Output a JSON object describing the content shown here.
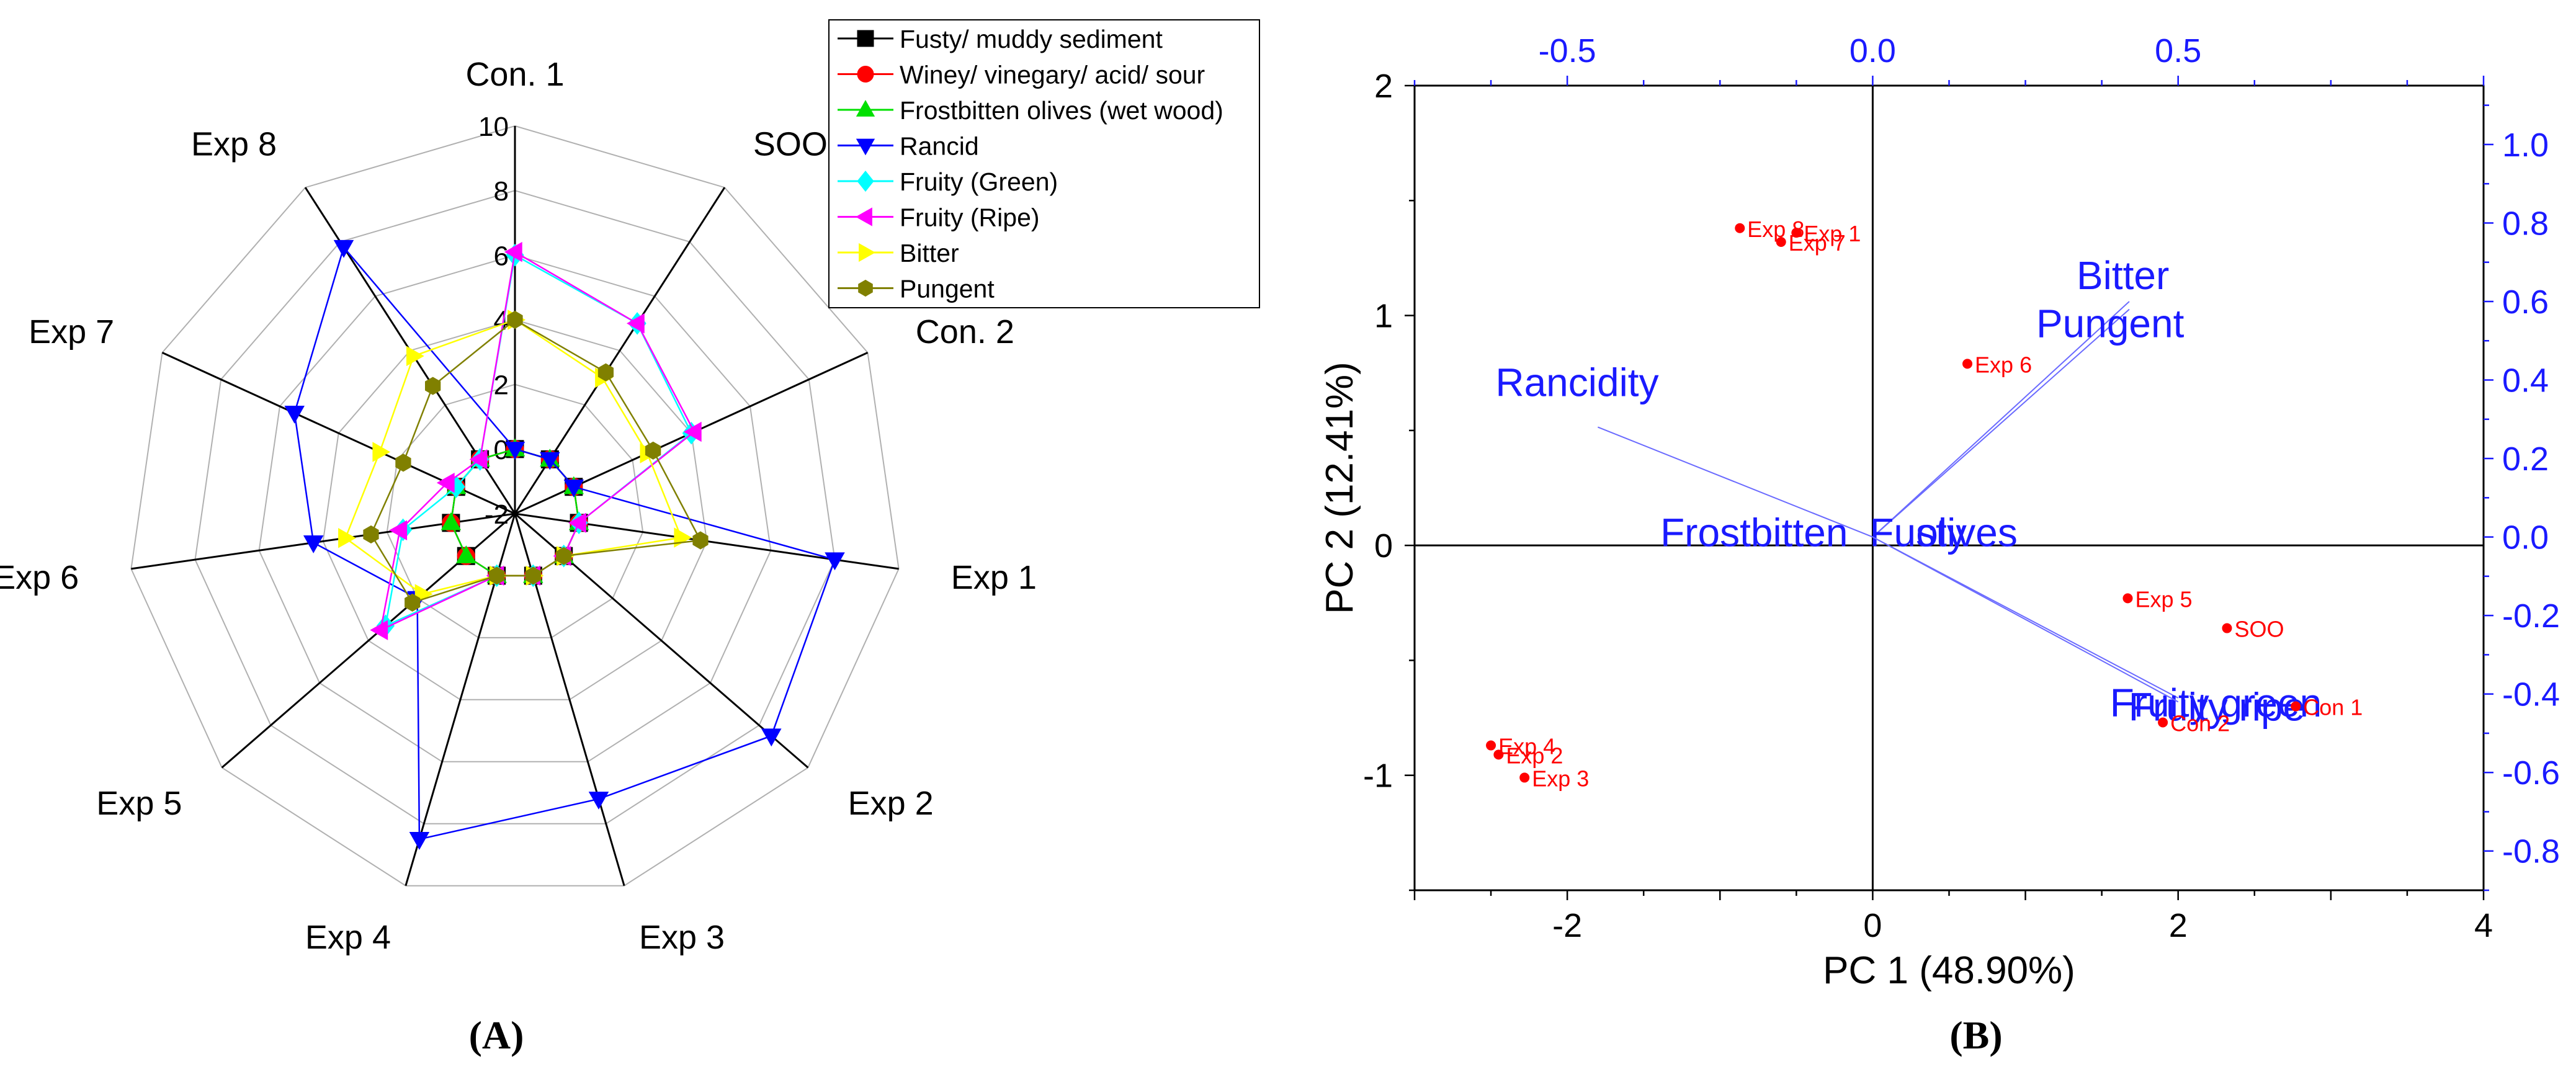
{
  "chart_data": [
    {
      "type": "radar",
      "panel_label": "(A)",
      "axes": [
        "Con. 1",
        "SOO",
        "Con. 2",
        "Exp 1",
        "Exp 2",
        "Exp 3",
        "Exp 4",
        "Exp 5",
        "Exp 6",
        "Exp 7",
        "Exp 8"
      ],
      "rlim": [
        -2,
        10
      ],
      "rticks": [
        "-2",
        "0",
        "2",
        "4",
        "6",
        "8",
        "10"
      ],
      "legend_position": "top-right",
      "series": [
        {
          "name": "Fusty/ muddy sediment",
          "color": "#000000",
          "marker": "square",
          "values": [
            0,
            0,
            0,
            0,
            0,
            0,
            0,
            0,
            0,
            0,
            0
          ]
        },
        {
          "name": "Winey/ vinegary/ acid/ sour",
          "color": "#ff0000",
          "marker": "circle",
          "values": [
            0,
            0,
            0,
            0,
            0,
            0,
            0,
            0,
            0,
            0,
            0
          ]
        },
        {
          "name": "Frostbitten olives (wet wood)",
          "color": "#00e000",
          "marker": "triangle-up",
          "values": [
            0,
            0,
            0,
            0,
            0,
            0,
            0,
            0,
            0,
            0,
            0
          ]
        },
        {
          "name": "Rancid",
          "color": "#0000ff",
          "marker": "triangle-down",
          "values": [
            0,
            0,
            0,
            8,
            8.5,
            7.2,
            8.5,
            2,
            4.3,
            5.5,
            7.8
          ]
        },
        {
          "name": "Fruity (Green)",
          "color": "#00ffff",
          "marker": "diamond",
          "values": [
            6,
            5,
            4,
            0,
            0,
            0,
            0,
            3.3,
            1.5,
            0,
            0
          ]
        },
        {
          "name": "Fruity (Ripe)",
          "color": "#ff00ff",
          "marker": "triangle-left",
          "values": [
            6.1,
            5,
            4.1,
            0,
            0,
            0,
            0,
            3.5,
            1.6,
            0.3,
            0
          ]
        },
        {
          "name": "Bitter",
          "color": "#ffff00",
          "marker": "triangle-right",
          "values": [
            4,
            3,
            2.5,
            3.2,
            0,
            0,
            0,
            1.8,
            3.3,
            2.6,
            3.8
          ]
        },
        {
          "name": "Pungent",
          "color": "#808000",
          "marker": "hexagon",
          "values": [
            4,
            3.2,
            2.7,
            3.8,
            0,
            0,
            0,
            2.2,
            2.5,
            1.8,
            2.7
          ]
        }
      ]
    },
    {
      "type": "biplot",
      "panel_label": "(B)",
      "xlabel": "PC 1 (48.90%)",
      "ylabel": "PC 2 (12.41%)",
      "xlim": [
        -3,
        4
      ],
      "ylim": [
        -1.5,
        2
      ],
      "xticks": [
        "-2",
        "0",
        "2",
        "4"
      ],
      "yticks": [
        "-1",
        "0",
        "1",
        "2"
      ],
      "x2lim": [
        -0.75,
        1.0
      ],
      "x2ticks": [
        "-0.5",
        "0.0",
        "0.5"
      ],
      "y2lim": [
        -0.9,
        1.15
      ],
      "y2ticks": [
        "-0.8",
        "-0.6",
        "-0.4",
        "-0.2",
        "0.0",
        "0.2",
        "0.4",
        "0.6",
        "0.8",
        "1.0"
      ],
      "scores": [
        {
          "label": "Exp 8",
          "x": -0.87,
          "y": 1.38
        },
        {
          "label": "Exp 1",
          "x": -0.5,
          "y": 1.36
        },
        {
          "label": "Exp 7",
          "x": -0.6,
          "y": 1.32
        },
        {
          "label": "Exp 6",
          "x": 0.62,
          "y": 0.79
        },
        {
          "label": "Exp 5",
          "x": 1.67,
          "y": -0.23
        },
        {
          "label": "SOO",
          "x": 2.32,
          "y": -0.36
        },
        {
          "label": "Con 1",
          "x": 2.77,
          "y": -0.7
        },
        {
          "label": "Con 2",
          "x": 1.9,
          "y": -0.77
        },
        {
          "label": "Exp 4",
          "x": -2.5,
          "y": -0.87
        },
        {
          "label": "Exp 2",
          "x": -2.45,
          "y": -0.91
        },
        {
          "label": "Exp 3",
          "x": -2.28,
          "y": -1.01
        }
      ],
      "loadings": [
        {
          "label": "Bitter",
          "x": 0.42,
          "y": 0.6
        },
        {
          "label": "Pungent",
          "x": 0.42,
          "y": 0.58
        },
        {
          "label": "Rancidity",
          "x": -0.45,
          "y": 0.28
        },
        {
          "label": "Frostbitten",
          "x": 0.0,
          "y": 0.0
        },
        {
          "label": "Fusty",
          "x": 0.005,
          "y": 0.0
        },
        {
          "label": "olives",
          "x": 0.01,
          "y": 0.0
        },
        {
          "label": "Fruity green",
          "x": 0.5,
          "y": -0.41
        },
        {
          "label": "Fruity ripe",
          "x": 0.5,
          "y": -0.42
        }
      ]
    }
  ]
}
